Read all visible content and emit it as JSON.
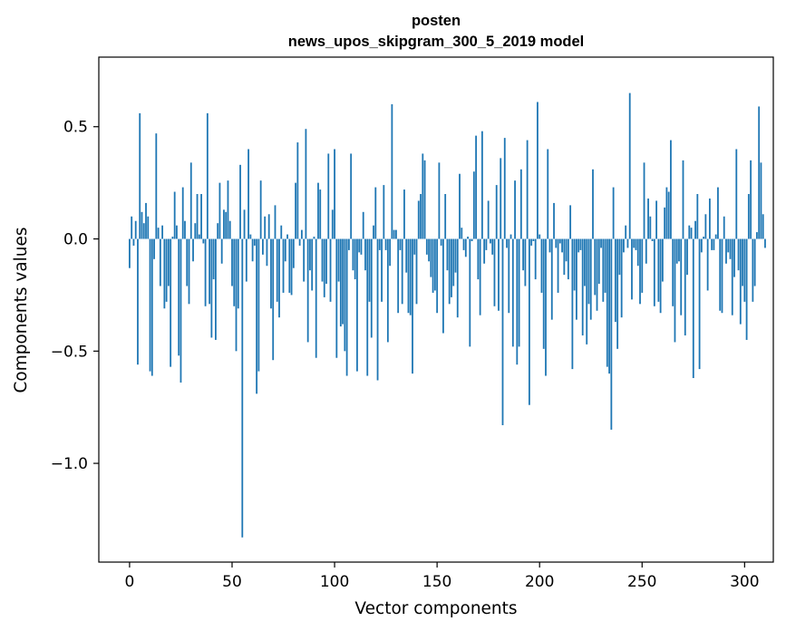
{
  "chart_data": {
    "type": "bar",
    "title": "posten",
    "subtitle": "news_upos_skipgram_300_5_2019 model",
    "xlabel": "Vector components",
    "ylabel": "Components values",
    "xlim": [
      -15,
      314
    ],
    "ylim": [
      -1.44,
      0.81
    ],
    "xticks": [
      0,
      50,
      100,
      150,
      200,
      250,
      300
    ],
    "yticks": [
      -1.0,
      -0.5,
      0.0,
      0.5
    ],
    "xtick_labels": [
      "0",
      "50",
      "100",
      "150",
      "200",
      "250",
      "300"
    ],
    "ytick_labels": [
      "−1.0",
      "−0.5",
      "0.0",
      "0.5"
    ],
    "color": "#1f77b4",
    "values": [
      -0.13,
      0.1,
      -0.03,
      0.08,
      -0.56,
      0.56,
      0.12,
      0.07,
      0.16,
      0.1,
      -0.59,
      -0.61,
      -0.09,
      0.47,
      0.05,
      -0.21,
      0.06,
      -0.31,
      -0.28,
      -0.21,
      -0.57,
      0.01,
      0.21,
      0.06,
      -0.52,
      -0.64,
      0.23,
      0.08,
      -0.21,
      -0.29,
      0.34,
      -0.1,
      0.07,
      0.2,
      0.02,
      0.2,
      -0.02,
      -0.3,
      0.56,
      -0.29,
      -0.44,
      -0.18,
      -0.45,
      0.07,
      0.25,
      -0.11,
      0.13,
      0.12,
      0.26,
      0.08,
      -0.21,
      -0.3,
      -0.5,
      -0.31,
      0.33,
      -1.33,
      0.13,
      -0.19,
      0.4,
      0.02,
      -0.1,
      -0.03,
      -0.69,
      -0.59,
      0.26,
      -0.07,
      0.1,
      -0.12,
      0.11,
      -0.31,
      -0.54,
      0.15,
      -0.28,
      -0.35,
      0.06,
      -0.24,
      -0.1,
      0.02,
      -0.24,
      -0.25,
      -0.13,
      0.25,
      0.43,
      -0.03,
      0.04,
      -0.19,
      0.49,
      -0.46,
      -0.14,
      -0.23,
      0.01,
      -0.53,
      0.25,
      0.22,
      -0.19,
      -0.26,
      -0.2,
      0.38,
      -0.28,
      0.13,
      0.4,
      -0.53,
      -0.19,
      -0.39,
      -0.38,
      -0.5,
      -0.61,
      -0.05,
      0.38,
      -0.14,
      -0.18,
      -0.59,
      -0.06,
      -0.07,
      0.12,
      -0.14,
      -0.61,
      -0.28,
      -0.44,
      0.06,
      0.23,
      -0.63,
      -0.05,
      -0.28,
      0.24,
      -0.05,
      -0.46,
      -0.12,
      0.6,
      0.04,
      0.04,
      -0.33,
      -0.05,
      -0.29,
      0.22,
      -0.15,
      -0.33,
      -0.34,
      -0.6,
      -0.07,
      -0.29,
      0.17,
      0.2,
      0.38,
      0.35,
      -0.07,
      -0.1,
      -0.17,
      -0.24,
      -0.23,
      -0.33,
      0.34,
      -0.03,
      -0.42,
      0.2,
      -0.14,
      -0.29,
      -0.26,
      -0.21,
      -0.15,
      -0.35,
      0.29,
      0.05,
      -0.05,
      -0.08,
      0.01,
      -0.48,
      -0.01,
      0.3,
      0.46,
      -0.18,
      -0.34,
      0.48,
      -0.11,
      -0.05,
      0.17,
      -0.02,
      -0.07,
      -0.3,
      0.24,
      -0.32,
      0.36,
      -0.83,
      0.45,
      -0.04,
      -0.33,
      0.02,
      -0.48,
      0.26,
      -0.56,
      -0.48,
      0.31,
      -0.14,
      -0.21,
      0.44,
      -0.74,
      -0.03,
      -0.01,
      -0.18,
      0.61,
      0.02,
      -0.24,
      -0.49,
      -0.61,
      0.4,
      -0.06,
      -0.36,
      0.16,
      -0.04,
      -0.24,
      -0.02,
      -0.06,
      -0.16,
      -0.1,
      -0.18,
      0.15,
      -0.58,
      -0.23,
      -0.36,
      -0.06,
      -0.05,
      -0.43,
      -0.21,
      -0.47,
      -0.29,
      -0.36,
      0.31,
      -0.25,
      -0.32,
      -0.2,
      -0.04,
      -0.28,
      -0.24,
      -0.57,
      -0.6,
      -0.85,
      0.23,
      -0.37,
      -0.49,
      -0.16,
      -0.35,
      -0.06,
      0.06,
      -0.04,
      0.65,
      -0.27,
      -0.04,
      -0.05,
      -0.12,
      -0.29,
      -0.24,
      0.34,
      -0.11,
      0.18,
      0.1,
      -0.01,
      -0.3,
      0.17,
      -0.28,
      -0.33,
      -0.19,
      0.14,
      0.23,
      0.21,
      0.44,
      -0.3,
      -0.46,
      -0.11,
      -0.1,
      -0.34,
      0.35,
      -0.43,
      -0.16,
      0.06,
      0.05,
      -0.62,
      0.08,
      0.2,
      -0.58,
      -0.06,
      0.01,
      0.11,
      -0.23,
      0.18,
      -0.05,
      -0.05,
      0.02,
      0.23,
      -0.32,
      -0.33,
      0.1,
      -0.11,
      -0.06,
      -0.09,
      -0.34,
      -0.17,
      0.4,
      -0.14,
      -0.38,
      -0.21,
      -0.28,
      -0.45,
      0.2,
      0.35,
      -0.28,
      -0.21,
      0.03,
      0.59,
      0.34,
      0.11,
      -0.04
    ]
  }
}
